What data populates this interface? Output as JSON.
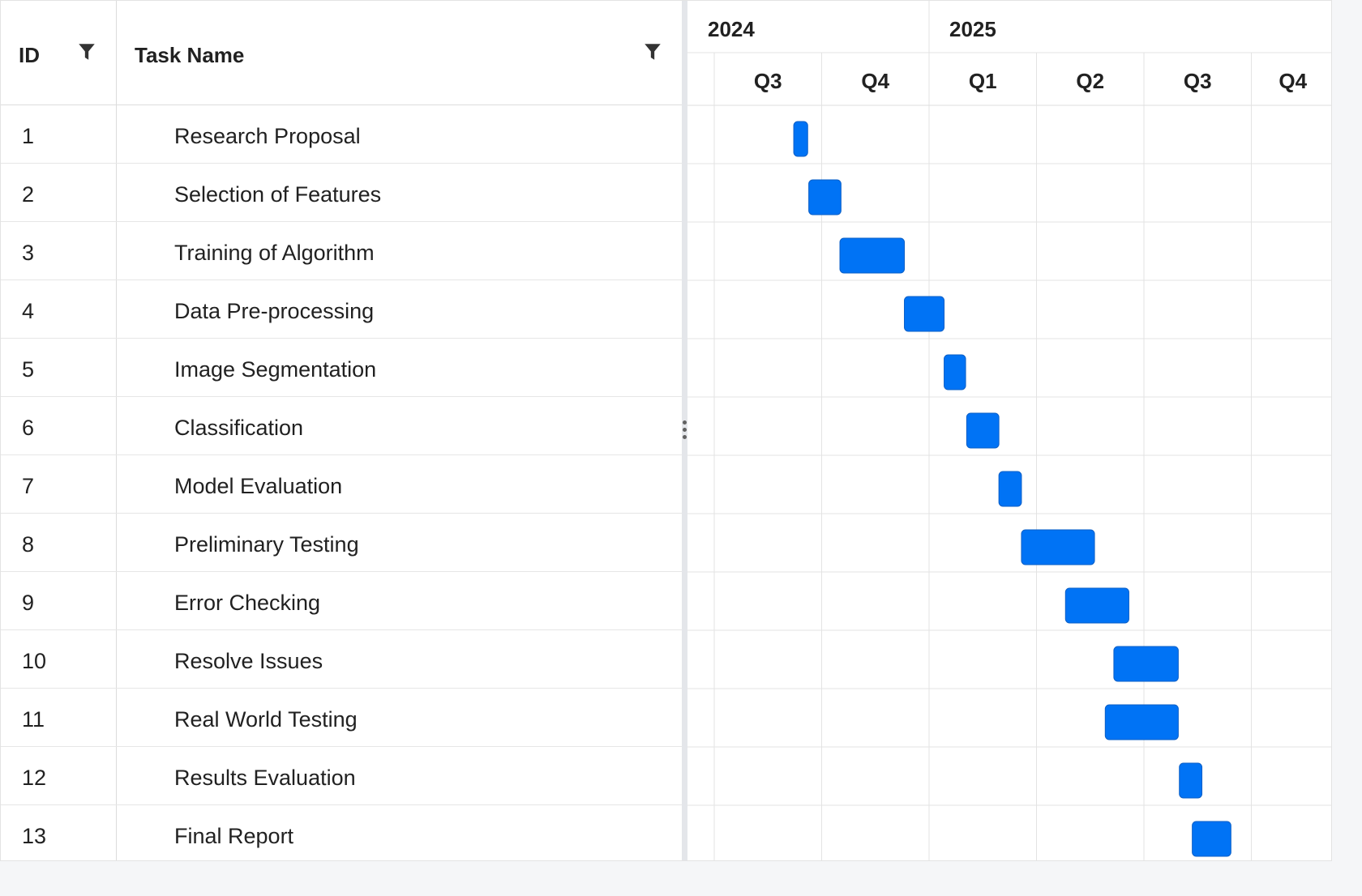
{
  "grid": {
    "columns": {
      "id": {
        "label": "ID",
        "filter_icon": "filter-icon"
      },
      "name": {
        "label": "Task Name",
        "filter_icon": "filter-icon"
      }
    },
    "tasks": [
      {
        "id": "1",
        "name": "Research Proposal"
      },
      {
        "id": "2",
        "name": "Selection of Features"
      },
      {
        "id": "3",
        "name": "Training of Algorithm"
      },
      {
        "id": "4",
        "name": "Data Pre-processing"
      },
      {
        "id": "5",
        "name": "Image Segmentation"
      },
      {
        "id": "6",
        "name": "Classification"
      },
      {
        "id": "7",
        "name": "Model Evaluation"
      },
      {
        "id": "8",
        "name": "Preliminary Testing"
      },
      {
        "id": "9",
        "name": "Error Checking"
      },
      {
        "id": "10",
        "name": "Resolve Issues"
      },
      {
        "id": "11",
        "name": "Real World Testing"
      },
      {
        "id": "12",
        "name": "Results Evaluation"
      },
      {
        "id": "13",
        "name": "Final Report"
      }
    ]
  },
  "splitter": {
    "icon": "vertical-ellipsis-icon"
  },
  "timeline": {
    "years": [
      "2024",
      "2025"
    ],
    "quarters": [
      "Q3",
      "Q4",
      "Q1",
      "Q2",
      "Q3",
      "Q4"
    ],
    "bar_color": "#0073f5",
    "bar_border": "#0a5fc7",
    "grid_color": "#e3e3e3"
  },
  "chart_data": {
    "type": "gantt",
    "time_unit": "quarter",
    "timeline_start": "2024 Q3",
    "tasks": [
      {
        "id": "1",
        "name": "Research Proposal",
        "start": 0.74,
        "end": 0.87
      },
      {
        "id": "2",
        "name": "Selection of Features",
        "start": 0.88,
        "end": 1.18
      },
      {
        "id": "3",
        "name": "Training of Algorithm",
        "start": 1.17,
        "end": 1.77
      },
      {
        "id": "4",
        "name": "Data Pre-processing",
        "start": 1.77,
        "end": 2.14
      },
      {
        "id": "5",
        "name": "Image Segmentation",
        "start": 2.14,
        "end": 2.34
      },
      {
        "id": "6",
        "name": "Classification",
        "start": 2.35,
        "end": 2.65
      },
      {
        "id": "7",
        "name": "Model Evaluation",
        "start": 2.65,
        "end": 2.86
      },
      {
        "id": "8",
        "name": "Preliminary Testing",
        "start": 2.86,
        "end": 3.54
      },
      {
        "id": "9",
        "name": "Error Checking",
        "start": 3.27,
        "end": 3.86
      },
      {
        "id": "10",
        "name": "Resolve Issues",
        "start": 3.72,
        "end": 4.32
      },
      {
        "id": "11",
        "name": "Real World Testing",
        "start": 3.64,
        "end": 4.32
      },
      {
        "id": "12",
        "name": "Results Evaluation",
        "start": 4.33,
        "end": 4.54
      },
      {
        "id": "13",
        "name": "Final Report",
        "start": 4.45,
        "end": 4.81
      }
    ]
  }
}
